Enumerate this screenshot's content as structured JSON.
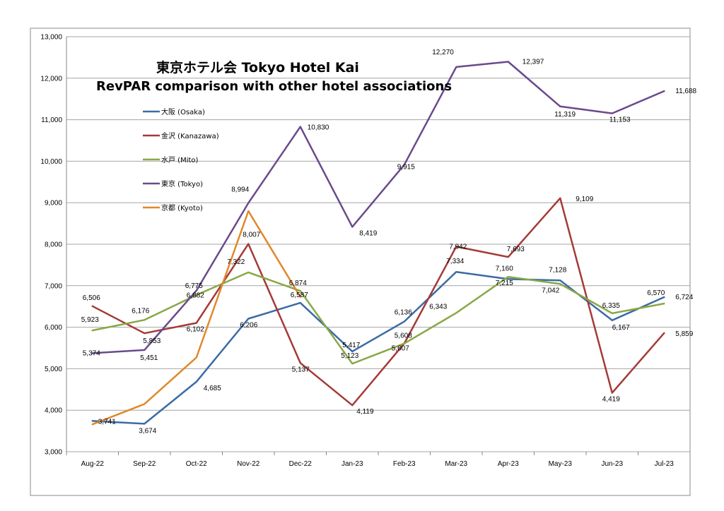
{
  "chart_data": {
    "type": "line",
    "title": "東京ホテル会 Tokyo Hotel Kai",
    "subtitle": "RevPAR comparison with other hotel associations",
    "xlabel": "",
    "ylabel": "",
    "ylim": [
      3000,
      13000
    ],
    "ytick_step": 1000,
    "grid": true,
    "legend_position": "upper-left",
    "categories": [
      "Aug-22",
      "Sep-22",
      "Oct-22",
      "Nov-22",
      "Dec-22",
      "Jan-23",
      "Feb-23",
      "Mar-23",
      "Apr-23",
      "May-23",
      "Jun-23",
      "Jul-23"
    ],
    "yticks": [
      "3,000",
      "4,000",
      "5,000",
      "6,000",
      "7,000",
      "8,000",
      "9,000",
      "10,000",
      "11,000",
      "12,000",
      "13,000"
    ],
    "series": [
      {
        "name": "大阪 (Osaka)",
        "color": "#3B6BA5",
        "values": [
          3741,
          3674,
          4685,
          6206,
          6587,
          5417,
          6136,
          7334,
          7160,
          7128,
          6167,
          6724
        ],
        "labels": [
          "3,741",
          "3,674",
          "4,685",
          "6,206",
          "6,587",
          "5,417",
          "6,136",
          "7,334",
          "7,160",
          "7,128",
          "6,167",
          "6,724"
        ]
      },
      {
        "name": "金沢 (Kanazawa)",
        "color": "#A43A37",
        "values": [
          6506,
          5853,
          6102,
          8007,
          5137,
          4119,
          5608,
          7942,
          7693,
          9109,
          4419,
          5859
        ],
        "labels": [
          "6,506",
          "5,853",
          "6,102",
          "8,007",
          "5,137",
          "4,119",
          "5,608",
          "7,942",
          "7,693",
          "9,109",
          "4,419",
          "5,859"
        ]
      },
      {
        "name": "水戸 (Mito)",
        "color": "#88A845",
        "values": [
          5923,
          6176,
          6775,
          7322,
          6874,
          5123,
          5607,
          6343,
          7215,
          7042,
          6335,
          6570
        ],
        "labels": [
          "5,923",
          "6,176",
          "6,775",
          "7,322",
          "6,874",
          "5,123",
          "5,607",
          "6,343",
          "7,215",
          "7,042",
          "6,335",
          "6,570"
        ]
      },
      {
        "name": "東京 (Tokyo)",
        "color": "#6A4A8C",
        "values": [
          5374,
          5451,
          6882,
          8994,
          10830,
          8419,
          9915,
          12270,
          12397,
          11319,
          11153,
          11688
        ],
        "labels": [
          "5,374",
          "5,451",
          "6,882",
          "8,994",
          "10,830",
          "8,419",
          "9,915",
          "12,270",
          "12,397",
          "11,319",
          "11,153",
          "11,688"
        ]
      },
      {
        "name": "京都 (Kyoto)",
        "color": "#E0882C",
        "values": [
          3660,
          4150,
          5270,
          8800,
          6730,
          null,
          null,
          null,
          null,
          null,
          null,
          null
        ],
        "labels": []
      }
    ]
  }
}
